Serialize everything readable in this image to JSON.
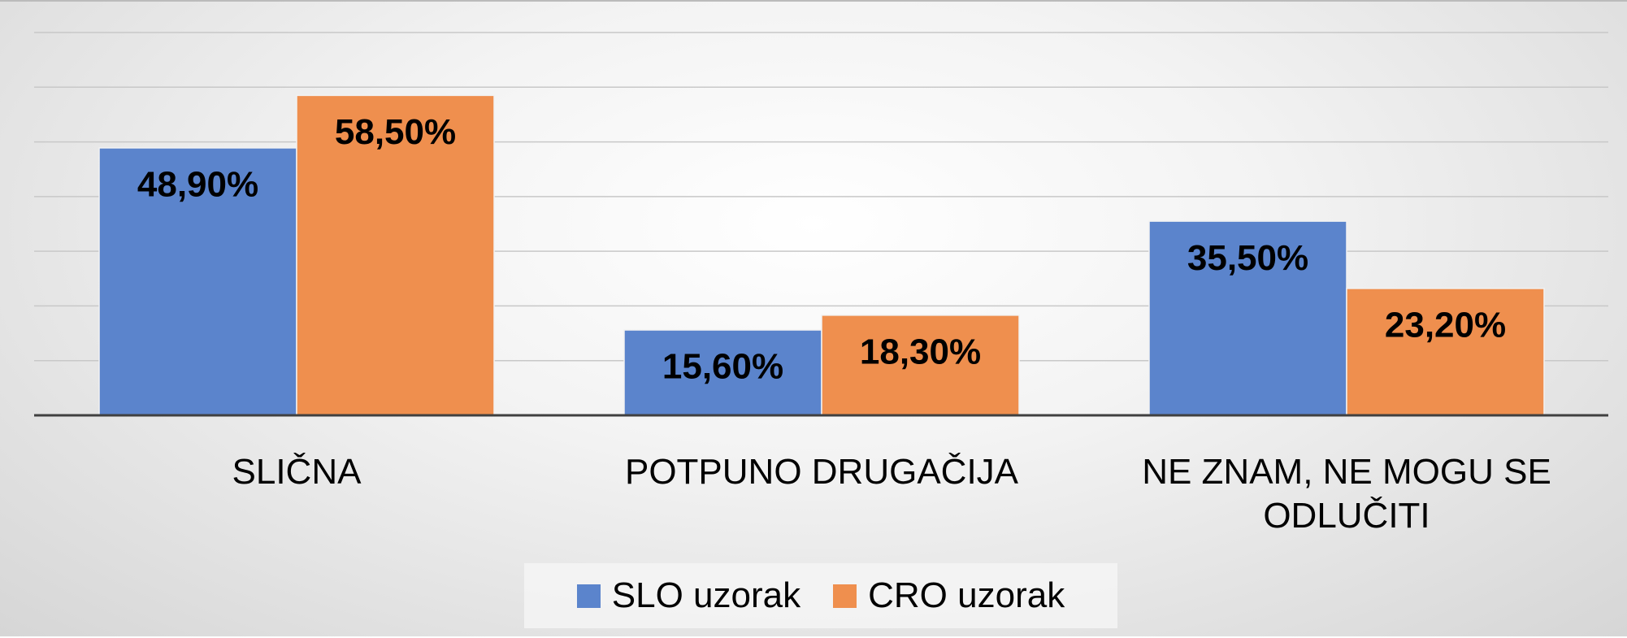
{
  "chart_data": {
    "type": "bar",
    "categories": [
      "SLIČNA",
      "POTPUNO DRUGAČIJA",
      "NE ZNAM, NE MOGU SE ODLUČITI"
    ],
    "series": [
      {
        "name": "SLO uzorak",
        "color": "#5b84cc",
        "values": [
          48.9,
          15.6,
          35.5
        ],
        "value_labels": [
          "48,90%",
          "15,60%",
          "35,50%"
        ]
      },
      {
        "name": "CRO uzorak",
        "color": "#ef8f4e",
        "values": [
          58.5,
          18.3,
          23.2
        ],
        "value_labels": [
          "58,50%",
          "18,30%",
          "23,20%"
        ]
      }
    ],
    "ylim": [
      0,
      70
    ],
    "yticks": [
      0,
      10,
      20,
      30,
      40,
      50,
      60,
      70
    ],
    "grid": true,
    "legend": "bottom"
  }
}
